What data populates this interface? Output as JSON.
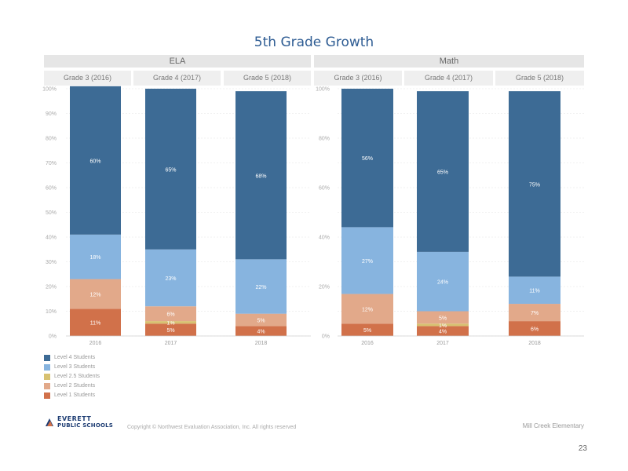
{
  "page": {
    "title": "5th Grade Growth",
    "copyright": "Copyright © Northwest Evaluation Association, Inc. All rights reserved",
    "school": "Mill Creek Elementary",
    "page_number": "23",
    "logo": {
      "line1": "EVERETT",
      "line2": "PUBLIC SCHOOLS"
    }
  },
  "colors": {
    "level4": "#3d6b95",
    "level3": "#87b4df",
    "level2_5": "#d7c171",
    "level2": "#e2a98a",
    "level1": "#d1714a",
    "subject_header_bg": "#e6e6e6",
    "grade_header_bg": "#efefef",
    "title": "#2e5c93"
  },
  "legend": [
    {
      "key": "level4",
      "label": "Level 4 Students"
    },
    {
      "key": "level3",
      "label": "Level 3 Students"
    },
    {
      "key": "level2_5",
      "label": "Level 2.5 Students"
    },
    {
      "key": "level2",
      "label": "Level 2 Students"
    },
    {
      "key": "level1",
      "label": "Level 1 Students"
    }
  ],
  "chart_data": [
    {
      "type": "bar",
      "stacked": true,
      "title": "ELA",
      "column_headers": [
        "Grade 3 (2016)",
        "Grade 4 (2017)",
        "Grade 5 (2018)"
      ],
      "categories": [
        "2016",
        "2017",
        "2018"
      ],
      "yticks": [
        "0%",
        "10%",
        "20%",
        "30%",
        "40%",
        "50%",
        "60%",
        "70%",
        "80%",
        "90%",
        "100%"
      ],
      "ylim": [
        0,
        100
      ],
      "grid": true,
      "legend_position": "bottom-left",
      "series": [
        {
          "key": "level1",
          "name": "Level 1 Students",
          "values": [
            11,
            5,
            4
          ],
          "labels": [
            "11%",
            "5%",
            "4%"
          ]
        },
        {
          "key": "level2_5",
          "name": "Level 2.5 Students",
          "values": [
            0,
            1,
            0
          ],
          "labels": [
            "",
            "1%",
            ""
          ]
        },
        {
          "key": "level2",
          "name": "Level 2 Students",
          "values": [
            12,
            6,
            5
          ],
          "labels": [
            "12%",
            "6%",
            "5%"
          ]
        },
        {
          "key": "level3",
          "name": "Level 3 Students",
          "values": [
            18,
            23,
            22
          ],
          "labels": [
            "18%",
            "23%",
            "22%"
          ]
        },
        {
          "key": "level4",
          "name": "Level 4 Students",
          "values": [
            60,
            65,
            68
          ],
          "labels": [
            "60%",
            "65%",
            "68%"
          ]
        }
      ]
    },
    {
      "type": "bar",
      "stacked": true,
      "title": "Math",
      "column_headers": [
        "Grade 3 (2016)",
        "Grade 4 (2017)",
        "Grade 5 (2018)"
      ],
      "categories": [
        "2016",
        "2017",
        "2018"
      ],
      "yticks": [
        "0%",
        "",
        "20%",
        "",
        "40%",
        "",
        "60%",
        "",
        "80%",
        "",
        "100%"
      ],
      "ylim": [
        0,
        100
      ],
      "grid": true,
      "series": [
        {
          "key": "level1",
          "name": "Level 1 Students",
          "values": [
            5,
            4,
            6
          ],
          "labels": [
            "5%",
            "4%",
            "6%"
          ]
        },
        {
          "key": "level2_5",
          "name": "Level 2.5 Students",
          "values": [
            0,
            1,
            0
          ],
          "labels": [
            "",
            "1%",
            ""
          ]
        },
        {
          "key": "level2",
          "name": "Level 2 Students",
          "values": [
            12,
            5,
            7
          ],
          "labels": [
            "12%",
            "5%",
            "7%"
          ]
        },
        {
          "key": "level3",
          "name": "Level 3 Students",
          "values": [
            27,
            24,
            11
          ],
          "labels": [
            "27%",
            "24%",
            "11%"
          ]
        },
        {
          "key": "level4",
          "name": "Level 4 Students",
          "values": [
            56,
            65,
            75
          ],
          "labels": [
            "56%",
            "65%",
            "75%"
          ]
        }
      ]
    }
  ]
}
